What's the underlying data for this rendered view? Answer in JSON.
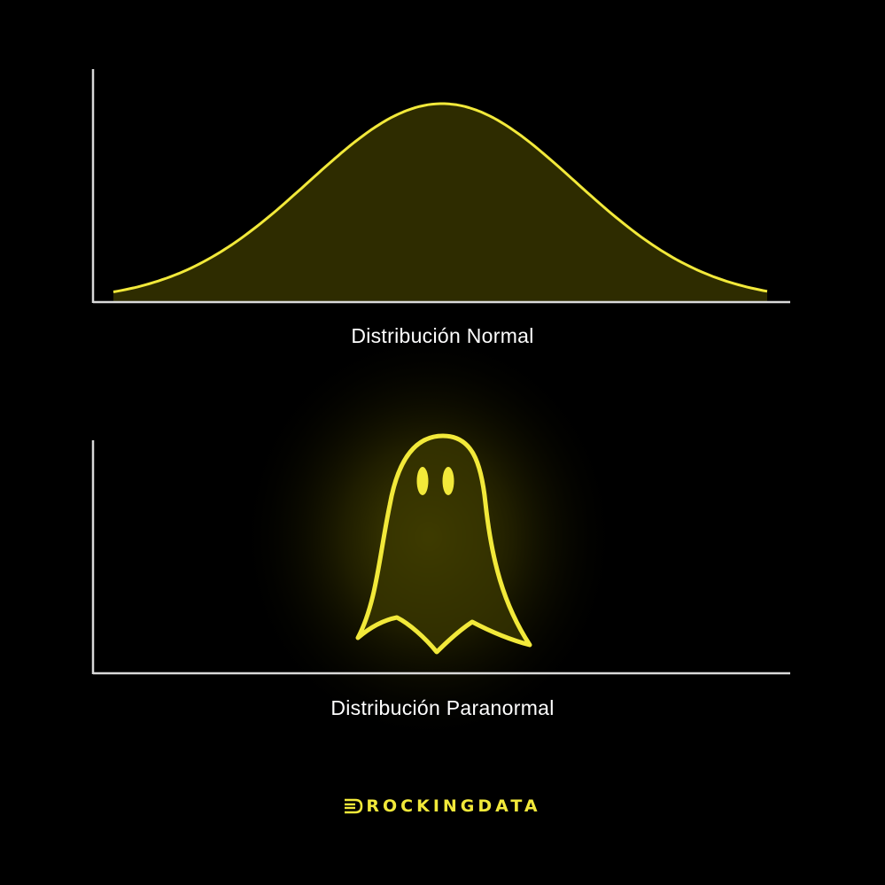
{
  "colors": {
    "background": "#000000",
    "accent": "#f2e93a",
    "fill": "#2e2c00",
    "axis": "#d9d9d9",
    "text": "#ffffff"
  },
  "chart_data": [
    {
      "type": "area",
      "shape": "normal-curve",
      "title": "Distribución Normal",
      "xlabel": "",
      "ylabel": "",
      "grid": false,
      "axes_ticks": false
    },
    {
      "type": "area",
      "shape": "ghost",
      "title": "Distribución Paranormal",
      "xlabel": "",
      "ylabel": "",
      "grid": false,
      "axes_ticks": false,
      "glow": true
    }
  ],
  "brand": {
    "name": "ROCKINGDATA",
    "icon": "rockingdata-logo-icon"
  }
}
